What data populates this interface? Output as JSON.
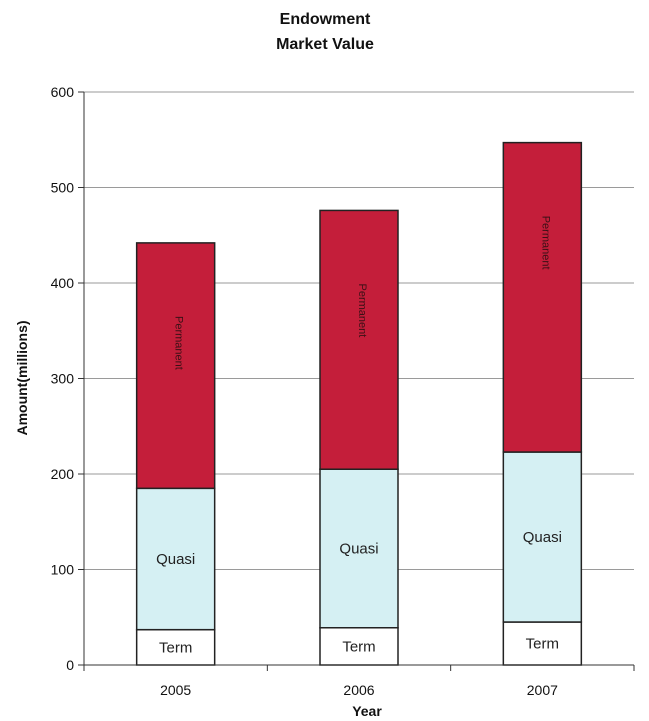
{
  "chart_data": {
    "type": "bar",
    "stacked": true,
    "title": "Endowment",
    "subtitle": "Market Value",
    "xlabel": "Year",
    "ylabel": "Amount(millions)",
    "categories": [
      "2005",
      "2006",
      "2007"
    ],
    "ylim": [
      0,
      600
    ],
    "yticks": [
      0,
      100,
      200,
      300,
      400,
      500,
      600
    ],
    "grid": true,
    "legend": "none",
    "series": [
      {
        "name": "Term",
        "values": [
          37,
          39,
          45
        ],
        "color": "#ffffff"
      },
      {
        "name": "Quasi",
        "values": [
          148,
          166,
          178
        ],
        "color": "#d5f0f3"
      },
      {
        "name": "Permanent",
        "values": [
          257,
          271,
          324
        ],
        "color": "#c41e3a"
      }
    ]
  }
}
